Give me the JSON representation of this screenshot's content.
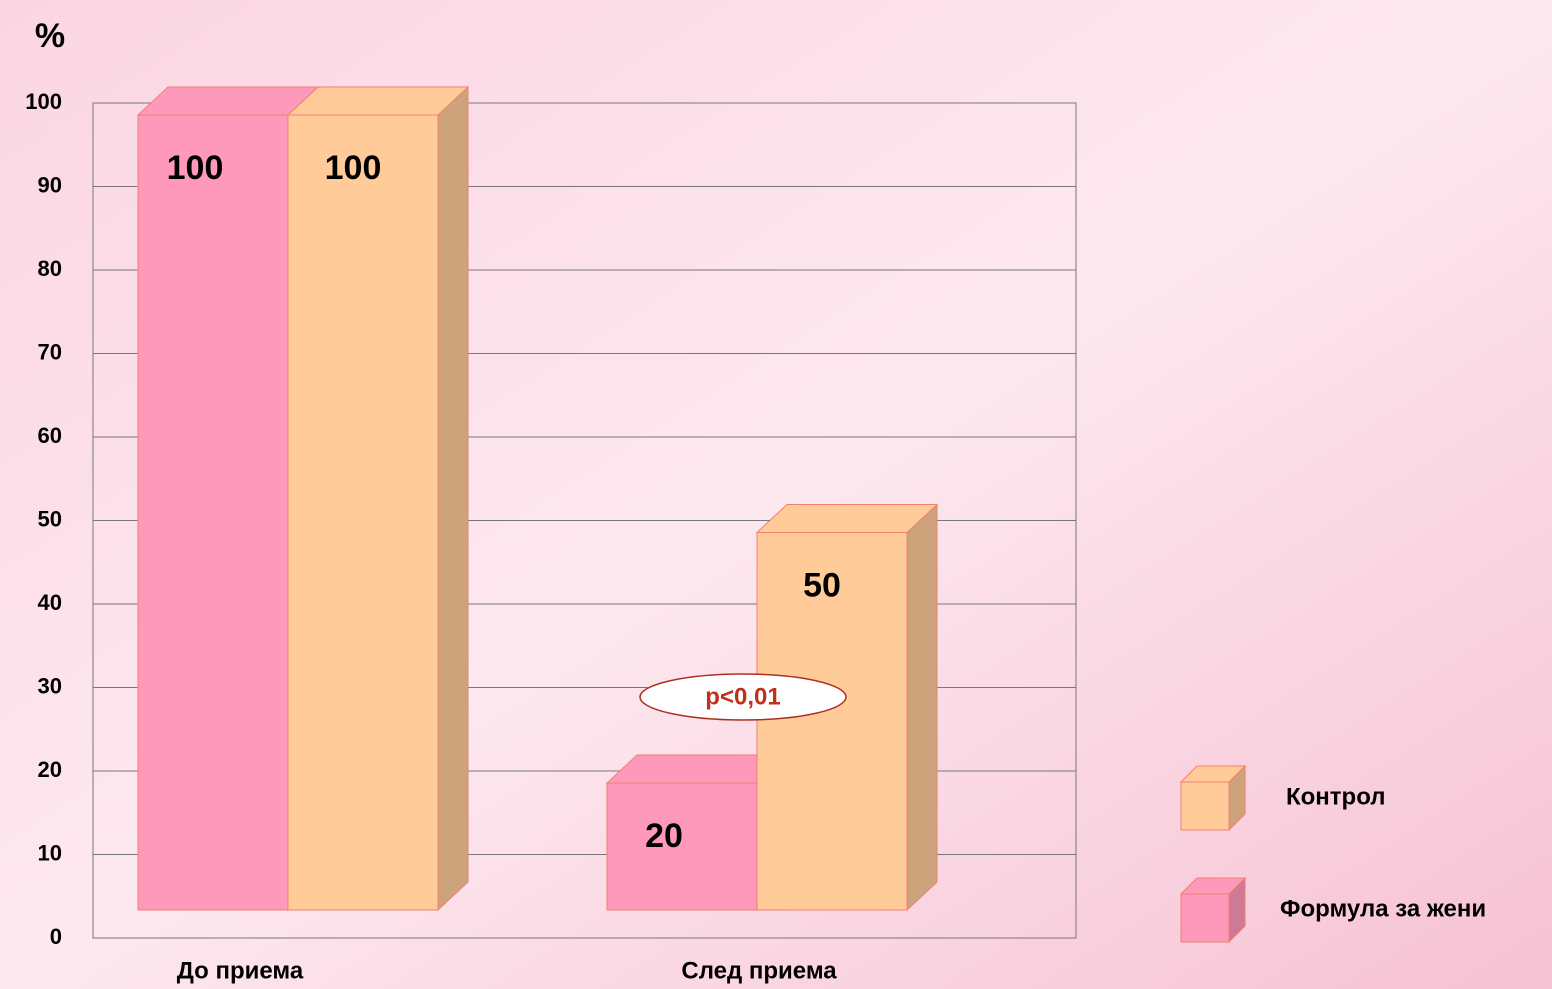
{
  "chart_data": {
    "type": "bar3d",
    "y_label": "%",
    "categories": [
      "До приема",
      "След приема"
    ],
    "series": [
      {
        "name": "Формула за жени",
        "color": "#ff99bb",
        "values": [
          100,
          20
        ]
      },
      {
        "name": "Контрол",
        "color": "#ffcc99",
        "values": [
          100,
          50
        ]
      }
    ],
    "ylim": [
      0,
      100
    ],
    "yticks": [
      0,
      10,
      20,
      30,
      40,
      50,
      60,
      70,
      80,
      90,
      100
    ],
    "grid": true,
    "annotation": "p<0,01"
  }
}
